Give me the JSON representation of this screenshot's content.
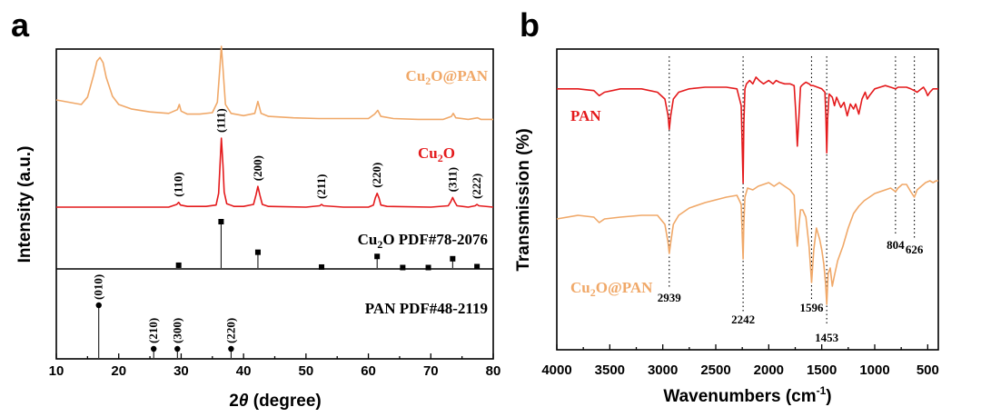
{
  "colors": {
    "cu2o_pan": "#f0a868",
    "cu2o": "#e41a1c",
    "pan": "#e41a1c",
    "ref": "#000000"
  },
  "chart_data": [
    {
      "type": "line",
      "panel_label": "a",
      "xlabel_pre": "2",
      "xlabel_italic": "θ",
      "xlabel_post": " (degree)",
      "ylabel": "Intensity (a.u.)",
      "xlim": [
        10,
        80
      ],
      "xticks": [
        10,
        20,
        30,
        40,
        50,
        60,
        70,
        80
      ],
      "legend": [],
      "series": [
        {
          "name": "Cu2O@PAN",
          "label_main": "Cu",
          "label_sub": "2",
          "label_rest": "O@PAN",
          "x": [
            10,
            12,
            14,
            15,
            16,
            16.5,
            17,
            17.5,
            18,
            19,
            20,
            22,
            25,
            28,
            29.4,
            29.7,
            30,
            31,
            33,
            35,
            35.8,
            36.2,
            36.45,
            36.7,
            37.1,
            38,
            40,
            41.8,
            42.3,
            42.8,
            44,
            48,
            52,
            56,
            60,
            61.0,
            61.5,
            62.0,
            64,
            68,
            72,
            73.3,
            73.6,
            74,
            76,
            77.5,
            78,
            80
          ],
          "y": [
            0.28,
            0.25,
            0.22,
            0.32,
            0.62,
            0.8,
            0.85,
            0.78,
            0.58,
            0.33,
            0.22,
            0.16,
            0.12,
            0.1,
            0.15,
            0.22,
            0.13,
            0.09,
            0.09,
            0.11,
            0.25,
            0.7,
            1.0,
            0.7,
            0.22,
            0.1,
            0.07,
            0.1,
            0.26,
            0.1,
            0.06,
            0.04,
            0.03,
            0.03,
            0.03,
            0.09,
            0.14,
            0.06,
            0.03,
            0.02,
            0.02,
            0.06,
            0.1,
            0.04,
            0.02,
            0.04,
            0.02,
            0.02
          ]
        },
        {
          "name": "Cu2O",
          "label_main": "Cu",
          "label_sub": "2",
          "label_rest": "O",
          "x": [
            10,
            20,
            28,
            29.3,
            29.6,
            29.9,
            31,
            34,
            35.6,
            36.0,
            36.2,
            36.45,
            36.7,
            36.9,
            37.3,
            38.5,
            40,
            41.6,
            42.0,
            42.3,
            42.6,
            43.0,
            44,
            50,
            52.2,
            52.5,
            52.8,
            56,
            60,
            60.8,
            61.1,
            61.4,
            61.7,
            62.0,
            63,
            70,
            72.8,
            73.2,
            73.5,
            73.8,
            74.2,
            76,
            77.1,
            77.4,
            77.7,
            80
          ],
          "y": [
            0,
            0,
            0,
            0.04,
            0.07,
            0.03,
            0.01,
            0.01,
            0.03,
            0.2,
            0.55,
            1.0,
            0.6,
            0.22,
            0.05,
            0.01,
            0.01,
            0.04,
            0.18,
            0.3,
            0.18,
            0.04,
            0.01,
            0,
            0.02,
            0.04,
            0.02,
            0,
            0,
            0.03,
            0.13,
            0.2,
            0.13,
            0.03,
            0.01,
            0,
            0.02,
            0.08,
            0.14,
            0.08,
            0.02,
            0,
            0.02,
            0.04,
            0.02,
            0
          ]
        }
      ],
      "cu2o_hkl": [
        {
          "hkl": "(110)",
          "x": 29.6
        },
        {
          "hkl": "(111)",
          "x": 36.4
        },
        {
          "hkl": "(200)",
          "x": 42.3
        },
        {
          "hkl": "(211)",
          "x": 52.5
        },
        {
          "hkl": "(220)",
          "x": 61.4
        },
        {
          "hkl": "(311)",
          "x": 73.5
        },
        {
          "hkl": "(222)",
          "x": 77.4
        }
      ],
      "reference_cu2o": {
        "label_main": "Cu",
        "label_sub": "2",
        "label_rest": "O PDF#78-2076",
        "x": [
          29.6,
          36.4,
          42.3,
          52.5,
          61.4,
          65.5,
          69.6,
          73.5,
          77.4
        ],
        "intensity": [
          0.06,
          1.0,
          0.34,
          0.02,
          0.25,
          0.01,
          0.01,
          0.2,
          0.03
        ]
      },
      "reference_pan": {
        "label": "PAN PDF#48-2119",
        "x": [
          16.8,
          25.6,
          29.4,
          38.0
        ],
        "intensity": [
          1.0,
          0.08,
          0.1,
          0.06
        ],
        "hkl": [
          "(010)",
          "(210)",
          "(300)",
          "(220)"
        ]
      }
    },
    {
      "type": "line",
      "panel_label": "b",
      "xlabel_main": "Wavenumbers (cm",
      "xlabel_sup": "-1",
      "xlabel_close": ")",
      "ylabel": "Transmission (%)",
      "xlim": [
        4000,
        400
      ],
      "xticks": [
        4000,
        3500,
        3000,
        2500,
        2000,
        1500,
        1000,
        500
      ],
      "series": [
        {
          "name": "PAN",
          "label": "PAN",
          "x": [
            4000,
            3800,
            3650,
            3600,
            3550,
            3400,
            3200,
            3050,
            2980,
            2950,
            2939,
            2925,
            2900,
            2850,
            2750,
            2600,
            2400,
            2300,
            2260,
            2250,
            2242,
            2235,
            2225,
            2210,
            2180,
            2150,
            2120,
            2090,
            2050,
            2000,
            1960,
            1930,
            1900,
            1850,
            1800,
            1760,
            1745,
            1730,
            1715,
            1700,
            1690,
            1670,
            1650,
            1620,
            1600,
            1580,
            1500,
            1470,
            1460,
            1453,
            1445,
            1430,
            1400,
            1380,
            1360,
            1320,
            1290,
            1260,
            1230,
            1200,
            1180,
            1150,
            1120,
            1090,
            1070,
            1050,
            1000,
            950,
            900,
            850,
            804,
            780,
            740,
            700,
            660,
            626,
            600,
            560,
            540,
            520,
            500,
            480,
            450,
            420,
            400
          ],
          "y": [
            96,
            96,
            95,
            92,
            94,
            96,
            96,
            94,
            90,
            80,
            72,
            80,
            90,
            94,
            96,
            97,
            97,
            96,
            86,
            60,
            40,
            75,
            96,
            99,
            101,
            99,
            103,
            101,
            99,
            101,
            99,
            101,
            100,
            99,
            99,
            98,
            82,
            62,
            80,
            97,
            98,
            99,
            100,
            99,
            98,
            98,
            96,
            94,
            78,
            58,
            78,
            93,
            91,
            86,
            91,
            85,
            88,
            80,
            87,
            84,
            87,
            81,
            90,
            94,
            90,
            92,
            96,
            97,
            98,
            97,
            96,
            97,
            97,
            97,
            96,
            95,
            94,
            96,
            97,
            95,
            92,
            94,
            96,
            96,
            96
          ]
        },
        {
          "name": "Cu2O@PAN",
          "label_main": "Cu",
          "label_sub": "2",
          "label_rest": "O@PAN",
          "x": [
            4000,
            3800,
            3650,
            3600,
            3550,
            3400,
            3200,
            3050,
            2980,
            2950,
            2939,
            2925,
            2900,
            2850,
            2750,
            2600,
            2400,
            2300,
            2260,
            2250,
            2242,
            2235,
            2225,
            2200,
            2150,
            2100,
            2050,
            2000,
            1950,
            1900,
            1850,
            1800,
            1760,
            1745,
            1730,
            1715,
            1700,
            1680,
            1650,
            1620,
            1596,
            1575,
            1550,
            1520,
            1500,
            1480,
            1465,
            1453,
            1440,
            1420,
            1400,
            1380,
            1350,
            1300,
            1250,
            1200,
            1150,
            1100,
            1050,
            1000,
            950,
            900,
            850,
            804,
            780,
            740,
            700,
            660,
            626,
            600,
            560,
            520,
            480,
            450,
            420,
            400
          ],
          "y": [
            55,
            57,
            56,
            53,
            55,
            56,
            57,
            57,
            52,
            42,
            36,
            42,
            52,
            57,
            61,
            64,
            67,
            68,
            63,
            45,
            33,
            52,
            67,
            72,
            71,
            73,
            74,
            75,
            73,
            75,
            73,
            71,
            68,
            50,
            40,
            52,
            60,
            60,
            56,
            40,
            20,
            38,
            50,
            44,
            38,
            30,
            20,
            8,
            25,
            28,
            18,
            24,
            32,
            40,
            50,
            58,
            62,
            65,
            67,
            69,
            70,
            71,
            72,
            70,
            72,
            74,
            74,
            70,
            67,
            71,
            73,
            75,
            76,
            75,
            76,
            76
          ]
        }
      ],
      "markers": [
        {
          "x": 2939,
          "label": "2939"
        },
        {
          "x": 2242,
          "label": "2242"
        },
        {
          "x": 1596,
          "label": "1596"
        },
        {
          "x": 1453,
          "label": "1453"
        },
        {
          "x": 804,
          "label": "804"
        },
        {
          "x": 626,
          "label": "626"
        }
      ]
    }
  ]
}
